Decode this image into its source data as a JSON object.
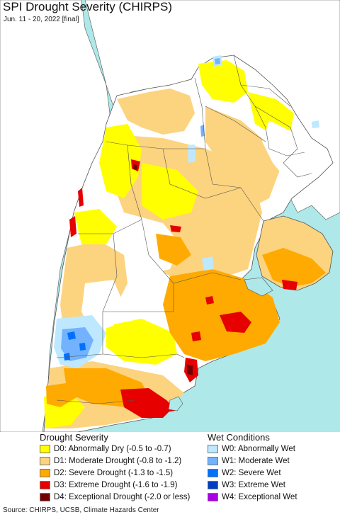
{
  "header": {
    "title": "SPI Drought Severity (CHIRPS)",
    "subtitle": "Jun. 11 - 20, 2022 [final]"
  },
  "map": {
    "ocean_color": "#aee8e8",
    "land_outside_color": "#ffffff",
    "neutral_color": "#ffffff",
    "border_color": "#555555"
  },
  "legend": {
    "drought": {
      "heading": "Drought Severity",
      "items": [
        {
          "label": "D0: Abnormally Dry (-0.5 to -0.7)",
          "color": "#ffff00"
        },
        {
          "label": "D1: Moderate Drought (-0.8 to -1.2)",
          "color": "#fcd37f"
        },
        {
          "label": "D2: Severe Drought (-1.3 to -1.5)",
          "color": "#ffaa00"
        },
        {
          "label": "D3: Extreme Drought (-1.6 to -1.9)",
          "color": "#e60000"
        },
        {
          "label": "D4: Exceptional Drought (-2.0 or less)",
          "color": "#730000"
        }
      ]
    },
    "wet": {
      "heading": "Wet Conditions",
      "items": [
        {
          "label": "W0: Abnormally Wet",
          "color": "#bee8ff"
        },
        {
          "label": "W1: Moderate Wet",
          "color": "#73b2ff"
        },
        {
          "label": "W2: Severe Wet",
          "color": "#0070ff"
        },
        {
          "label": "W3: Extreme Wet",
          "color": "#0040c0"
        },
        {
          "label": "W4: Exceptional Wet",
          "color": "#a900e6"
        }
      ]
    }
  },
  "source": "Source: CHIRPS, UCSB, Climate Hazards Center"
}
